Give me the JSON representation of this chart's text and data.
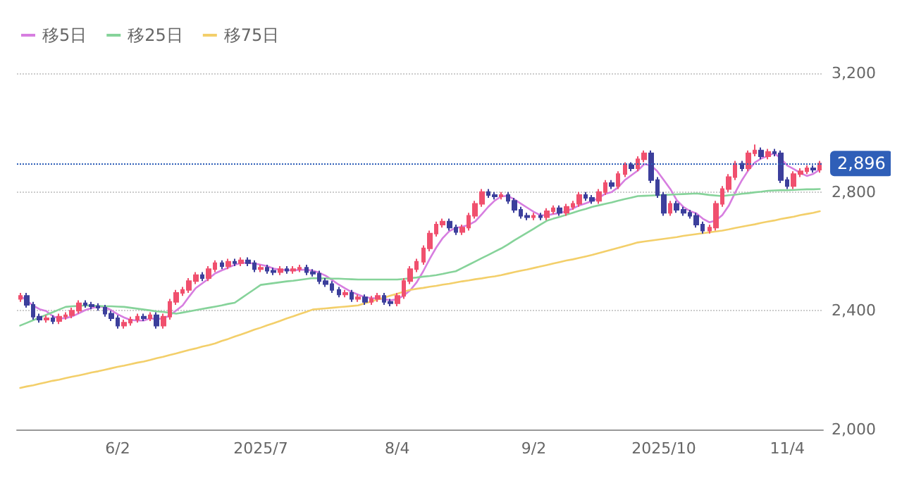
{
  "chart_data": {
    "type": "candlestick",
    "categories": [
      null,
      null,
      null,
      null,
      null,
      null,
      null,
      null,
      null,
      null,
      null,
      null,
      null,
      null,
      null,
      "6/2",
      null,
      null,
      null,
      null,
      null,
      null,
      null,
      null,
      null,
      null,
      null,
      null,
      null,
      null,
      null,
      null,
      null,
      null,
      null,
      null,
      null,
      "2025/7",
      null,
      null,
      null,
      null,
      null,
      null,
      null,
      null,
      null,
      null,
      null,
      null,
      null,
      null,
      null,
      null,
      null,
      null,
      null,
      null,
      "8/4",
      null,
      null,
      null,
      null,
      null,
      null,
      null,
      null,
      null,
      null,
      null,
      null,
      null,
      null,
      null,
      null,
      null,
      null,
      null,
      null,
      "9/2",
      null,
      null,
      null,
      null,
      null,
      null,
      null,
      null,
      null,
      null,
      null,
      null,
      null,
      null,
      null,
      null,
      null,
      null,
      null,
      "2025/10",
      null,
      null,
      null,
      null,
      null,
      null,
      null,
      null,
      null,
      null,
      null,
      null,
      null,
      null,
      null,
      null,
      null,
      null,
      "11/4",
      null,
      null,
      null,
      null,
      null
    ],
    "ohlc": [
      [
        2440,
        2460,
        2430,
        2450
      ],
      [
        2450,
        2460,
        2410,
        2420
      ],
      [
        2420,
        2430,
        2370,
        2380
      ],
      [
        2380,
        2390,
        2360,
        2370
      ],
      [
        2370,
        2385,
        2360,
        2375
      ],
      [
        2375,
        2385,
        2355,
        2365
      ],
      [
        2365,
        2390,
        2355,
        2380
      ],
      [
        2380,
        2395,
        2370,
        2385
      ],
      [
        2385,
        2410,
        2375,
        2400
      ],
      [
        2400,
        2435,
        2390,
        2425
      ],
      [
        2425,
        2435,
        2410,
        2420
      ],
      [
        2420,
        2430,
        2405,
        2415
      ],
      [
        2415,
        2425,
        2400,
        2410
      ],
      [
        2410,
        2420,
        2380,
        2390
      ],
      [
        2390,
        2400,
        2365,
        2375
      ],
      [
        2375,
        2385,
        2340,
        2350
      ],
      [
        2350,
        2370,
        2340,
        2360
      ],
      [
        2360,
        2380,
        2350,
        2370
      ],
      [
        2370,
        2390,
        2360,
        2380
      ],
      [
        2380,
        2390,
        2365,
        2375
      ],
      [
        2375,
        2395,
        2365,
        2385
      ],
      [
        2385,
        2395,
        2340,
        2350
      ],
      [
        2350,
        2390,
        2340,
        2380
      ],
      [
        2380,
        2440,
        2370,
        2430
      ],
      [
        2430,
        2470,
        2420,
        2460
      ],
      [
        2460,
        2480,
        2450,
        2470
      ],
      [
        2470,
        2510,
        2460,
        2500
      ],
      [
        2500,
        2530,
        2490,
        2520
      ],
      [
        2520,
        2530,
        2500,
        2510
      ],
      [
        2510,
        2550,
        2500,
        2540
      ],
      [
        2540,
        2570,
        2530,
        2560
      ],
      [
        2560,
        2570,
        2540,
        2550
      ],
      [
        2550,
        2575,
        2540,
        2565
      ],
      [
        2565,
        2575,
        2550,
        2560
      ],
      [
        2560,
        2580,
        2550,
        2570
      ],
      [
        2570,
        2580,
        2550,
        2560
      ],
      [
        2560,
        2570,
        2530,
        2540
      ],
      [
        2540,
        2555,
        2530,
        2545
      ],
      [
        2545,
        2555,
        2525,
        2535
      ],
      [
        2535,
        2545,
        2520,
        2530
      ],
      [
        2530,
        2550,
        2520,
        2540
      ],
      [
        2540,
        2550,
        2525,
        2535
      ],
      [
        2535,
        2550,
        2525,
        2540
      ],
      [
        2540,
        2555,
        2530,
        2545
      ],
      [
        2545,
        2555,
        2520,
        2530
      ],
      [
        2530,
        2540,
        2515,
        2525
      ],
      [
        2525,
        2535,
        2490,
        2500
      ],
      [
        2500,
        2510,
        2480,
        2490
      ],
      [
        2490,
        2500,
        2460,
        2470
      ],
      [
        2470,
        2480,
        2445,
        2455
      ],
      [
        2455,
        2470,
        2445,
        2460
      ],
      [
        2460,
        2470,
        2430,
        2440
      ],
      [
        2440,
        2455,
        2430,
        2445
      ],
      [
        2445,
        2455,
        2420,
        2430
      ],
      [
        2430,
        2450,
        2420,
        2440
      ],
      [
        2440,
        2460,
        2430,
        2450
      ],
      [
        2450,
        2460,
        2420,
        2430
      ],
      [
        2430,
        2440,
        2415,
        2425
      ],
      [
        2425,
        2460,
        2415,
        2450
      ],
      [
        2450,
        2510,
        2440,
        2500
      ],
      [
        2500,
        2550,
        2490,
        2540
      ],
      [
        2540,
        2575,
        2530,
        2565
      ],
      [
        2565,
        2620,
        2555,
        2610
      ],
      [
        2610,
        2670,
        2600,
        2660
      ],
      [
        2660,
        2700,
        2650,
        2690
      ],
      [
        2690,
        2710,
        2680,
        2700
      ],
      [
        2700,
        2710,
        2670,
        2680
      ],
      [
        2680,
        2690,
        2655,
        2665
      ],
      [
        2665,
        2690,
        2655,
        2680
      ],
      [
        2680,
        2730,
        2670,
        2720
      ],
      [
        2720,
        2770,
        2710,
        2760
      ],
      [
        2760,
        2810,
        2750,
        2800
      ],
      [
        2800,
        2810,
        2780,
        2790
      ],
      [
        2790,
        2800,
        2775,
        2785
      ],
      [
        2785,
        2800,
        2775,
        2790
      ],
      [
        2790,
        2800,
        2760,
        2770
      ],
      [
        2770,
        2780,
        2730,
        2740
      ],
      [
        2740,
        2750,
        2710,
        2720
      ],
      [
        2720,
        2730,
        2705,
        2715
      ],
      [
        2715,
        2730,
        2705,
        2720
      ],
      [
        2720,
        2730,
        2705,
        2715
      ],
      [
        2715,
        2745,
        2705,
        2735
      ],
      [
        2735,
        2755,
        2725,
        2745
      ],
      [
        2745,
        2755,
        2720,
        2730
      ],
      [
        2730,
        2760,
        2720,
        2750
      ],
      [
        2750,
        2770,
        2740,
        2760
      ],
      [
        2760,
        2800,
        2750,
        2790
      ],
      [
        2790,
        2800,
        2770,
        2780
      ],
      [
        2780,
        2790,
        2760,
        2770
      ],
      [
        2770,
        2810,
        2760,
        2800
      ],
      [
        2800,
        2840,
        2790,
        2830
      ],
      [
        2830,
        2840,
        2810,
        2820
      ],
      [
        2820,
        2870,
        2810,
        2860
      ],
      [
        2860,
        2900,
        2850,
        2890
      ],
      [
        2890,
        2900,
        2870,
        2880
      ],
      [
        2880,
        2920,
        2870,
        2910
      ],
      [
        2910,
        2940,
        2900,
        2930
      ],
      [
        2930,
        2940,
        2830,
        2840
      ],
      [
        2840,
        2850,
        2780,
        2790
      ],
      [
        2790,
        2800,
        2720,
        2730
      ],
      [
        2730,
        2770,
        2720,
        2760
      ],
      [
        2760,
        2770,
        2730,
        2740
      ],
      [
        2740,
        2750,
        2720,
        2730
      ],
      [
        2730,
        2740,
        2710,
        2720
      ],
      [
        2720,
        2730,
        2680,
        2690
      ],
      [
        2690,
        2700,
        2660,
        2670
      ],
      [
        2670,
        2690,
        2660,
        2680
      ],
      [
        2680,
        2770,
        2670,
        2760
      ],
      [
        2760,
        2820,
        2750,
        2810
      ],
      [
        2810,
        2860,
        2800,
        2850
      ],
      [
        2850,
        2905,
        2840,
        2895
      ],
      [
        2895,
        2905,
        2870,
        2880
      ],
      [
        2880,
        2940,
        2870,
        2930
      ],
      [
        2930,
        2960,
        2920,
        2940
      ],
      [
        2940,
        2950,
        2910,
        2920
      ],
      [
        2920,
        2945,
        2910,
        2935
      ],
      [
        2935,
        2945,
        2920,
        2930
      ],
      [
        2930,
        2940,
        2830,
        2840
      ],
      [
        2840,
        2850,
        2810,
        2820
      ],
      [
        2820,
        2870,
        2810,
        2860
      ],
      [
        2860,
        2880,
        2850,
        2870
      ],
      [
        2870,
        2890,
        2860,
        2880
      ],
      [
        2880,
        2890,
        2865,
        2875
      ],
      [
        2875,
        2905,
        2865,
        2896
      ]
    ],
    "colors": [
      "#f0506e",
      "#3c3f9c",
      "#3c3f9c",
      "#3c3f9c",
      "#f0506e",
      "#3c3f9c",
      "#f0506e",
      "#f0506e",
      "#f0506e",
      "#f0506e",
      "#3c3f9c",
      "#3c3f9c",
      "#3c3f9c",
      "#3c3f9c",
      "#3c3f9c",
      "#3c3f9c",
      "#f0506e",
      "#f0506e",
      "#f0506e",
      "#3c3f9c",
      "#f0506e",
      "#3c3f9c",
      "#f0506e",
      "#f0506e",
      "#f0506e",
      "#f0506e",
      "#f0506e",
      "#f0506e",
      "#3c3f9c",
      "#f0506e",
      "#f0506e",
      "#3c3f9c",
      "#f0506e",
      "#3c3f9c",
      "#f0506e",
      "#3c3f9c",
      "#3c3f9c",
      "#f0506e",
      "#3c3f9c",
      "#3c3f9c",
      "#f0506e",
      "#3c3f9c",
      "#f0506e",
      "#f0506e",
      "#3c3f9c",
      "#3c3f9c",
      "#3c3f9c",
      "#3c3f9c",
      "#3c3f9c",
      "#3c3f9c",
      "#f0506e",
      "#3c3f9c",
      "#f0506e",
      "#3c3f9c",
      "#f0506e",
      "#f0506e",
      "#3c3f9c",
      "#3c3f9c",
      "#f0506e",
      "#f0506e",
      "#f0506e",
      "#f0506e",
      "#f0506e",
      "#f0506e",
      "#f0506e",
      "#f0506e",
      "#3c3f9c",
      "#3c3f9c",
      "#f0506e",
      "#f0506e",
      "#f0506e",
      "#f0506e",
      "#3c3f9c",
      "#3c3f9c",
      "#f0506e",
      "#3c3f9c",
      "#3c3f9c",
      "#3c3f9c",
      "#3c3f9c",
      "#f0506e",
      "#3c3f9c",
      "#f0506e",
      "#f0506e",
      "#3c3f9c",
      "#f0506e",
      "#f0506e",
      "#f0506e",
      "#3c3f9c",
      "#3c3f9c",
      "#f0506e",
      "#f0506e",
      "#3c3f9c",
      "#f0506e",
      "#f0506e",
      "#3c3f9c",
      "#f0506e",
      "#f0506e",
      "#3c3f9c",
      "#3c3f9c",
      "#3c3f9c",
      "#f0506e",
      "#3c3f9c",
      "#3c3f9c",
      "#3c3f9c",
      "#3c3f9c",
      "#3c3f9c",
      "#f0506e",
      "#f0506e",
      "#f0506e",
      "#f0506e",
      "#f0506e",
      "#3c3f9c",
      "#f0506e",
      "#f0506e",
      "#3c3f9c",
      "#f0506e",
      "#3c3f9c",
      "#3c3f9c",
      "#3c3f9c",
      "#f0506e",
      "#f0506e",
      "#f0506e",
      "#3c3f9c",
      "#f0506e"
    ],
    "series": [
      {
        "type": "line",
        "name": "移5日",
        "color": "#d77ee0",
        "values": [
          2450,
          2435,
          2417,
          2405,
          2399,
          2382,
          2374,
          2375,
          2381,
          2391,
          2402,
          2409,
          2414,
          2412,
          2402,
          2388,
          2377,
          2369,
          2367,
          2367,
          2374,
          2372,
          2374,
          2384,
          2401,
          2418,
          2448,
          2476,
          2492,
          2508,
          2526,
          2536,
          2545,
          2555,
          2561,
          2561,
          2559,
          2555,
          2550,
          2542,
          2538,
          2537,
          2536,
          2538,
          2538,
          2535,
          2528,
          2518,
          2503,
          2488,
          2475,
          2463,
          2454,
          2446,
          2443,
          2441,
          2439,
          2435,
          2439,
          2451,
          2469,
          2496,
          2533,
          2575,
          2613,
          2645,
          2668,
          2679,
          2683,
          2689,
          2701,
          2725,
          2750,
          2771,
          2785,
          2787,
          2775,
          2761,
          2747,
          2733,
          2722,
          2721,
          2726,
          2729,
          2735,
          2744,
          2755,
          2762,
          2770,
          2780,
          2794,
          2800,
          2816,
          2840,
          2856,
          2872,
          2894,
          2890,
          2870,
          2840,
          2810,
          2772,
          2750,
          2736,
          2728,
          2710,
          2698,
          2704,
          2722,
          2754,
          2799,
          2839,
          2873,
          2899,
          2913,
          2921,
          2931,
          2913,
          2889,
          2877,
          2864,
          2854,
          2861,
          2876
        ]
      },
      {
        "type": "line",
        "name": "移25日",
        "color": "#86d39a",
        "values": [
          2350,
          2359,
          2368,
          2377,
          2386,
          2395,
          2404,
          2413,
          2415,
          2416,
          2418,
          2417,
          2416,
          2415,
          2415,
          2414,
          2413,
          2410,
          2407,
          2404,
          2401,
          2398,
          2396,
          2393,
          2390,
          2394,
          2398,
          2402,
          2406,
          2410,
          2414,
          2418,
          2423,
          2427,
          2442,
          2457,
          2472,
          2487,
          2490,
          2493,
          2496,
          2499,
          2501,
          2504,
          2507,
          2510,
          2509,
          2509,
          2508,
          2508,
          2507,
          2506,
          2505,
          2505,
          2505,
          2505,
          2505,
          2505,
          2505,
          2507,
          2510,
          2512,
          2515,
          2517,
          2520,
          2524,
          2529,
          2533,
          2544,
          2555,
          2566,
          2577,
          2588,
          2599,
          2610,
          2623,
          2637,
          2650,
          2663,
          2676,
          2690,
          2703,
          2710,
          2716,
          2723,
          2730,
          2737,
          2743,
          2750,
          2755,
          2760,
          2765,
          2771,
          2776,
          2781,
          2786,
          2787,
          2788,
          2789,
          2790,
          2791,
          2792,
          2793,
          2794,
          2795,
          2793,
          2790,
          2788,
          2786,
          2789,
          2791,
          2794,
          2796,
          2799,
          2801,
          2804,
          2805,
          2806,
          2806,
          2807,
          2808,
          2809,
          2809,
          2810
        ]
      },
      {
        "type": "line",
        "name": "移75日",
        "color": "#f3cf6a",
        "values": [
          2140,
          2145,
          2149,
          2154,
          2159,
          2164,
          2168,
          2173,
          2178,
          2182,
          2187,
          2192,
          2196,
          2201,
          2206,
          2211,
          2215,
          2220,
          2225,
          2229,
          2234,
          2240,
          2245,
          2251,
          2256,
          2262,
          2268,
          2273,
          2279,
          2284,
          2290,
          2298,
          2305,
          2313,
          2320,
          2328,
          2336,
          2343,
          2351,
          2358,
          2366,
          2374,
          2381,
          2389,
          2396,
          2404,
          2406,
          2408,
          2410,
          2412,
          2414,
          2416,
          2418,
          2425,
          2431,
          2438,
          2444,
          2451,
          2457,
          2464,
          2470,
          2474,
          2477,
          2481,
          2484,
          2488,
          2491,
          2495,
          2499,
          2502,
          2506,
          2509,
          2513,
          2516,
          2520,
          2525,
          2530,
          2535,
          2539,
          2544,
          2549,
          2554,
          2559,
          2564,
          2569,
          2573,
          2578,
          2583,
          2588,
          2594,
          2600,
          2606,
          2612,
          2618,
          2624,
          2630,
          2633,
          2636,
          2639,
          2642,
          2645,
          2648,
          2652,
          2655,
          2658,
          2661,
          2664,
          2667,
          2670,
          2674,
          2679,
          2683,
          2687,
          2691,
          2696,
          2700,
          2704,
          2709,
          2713,
          2717,
          2722,
          2726,
          2730,
          2735
        ]
      }
    ],
    "ylim": [
      2000,
      3200
    ],
    "yticks": [
      {
        "value": 2000,
        "label": "2,000"
      },
      {
        "value": 2400,
        "label": "2,400"
      },
      {
        "value": 2800,
        "label": "2,800"
      },
      {
        "value": 3200,
        "label": "3,200"
      }
    ],
    "grid": "y",
    "legend": "top left",
    "marker": "none",
    "line_style": "solid",
    "ref_lines": [
      {
        "axis": "y",
        "value": 2896,
        "label": "2,896",
        "color": "#2f5fb8",
        "line_style": "dotted"
      }
    ]
  }
}
